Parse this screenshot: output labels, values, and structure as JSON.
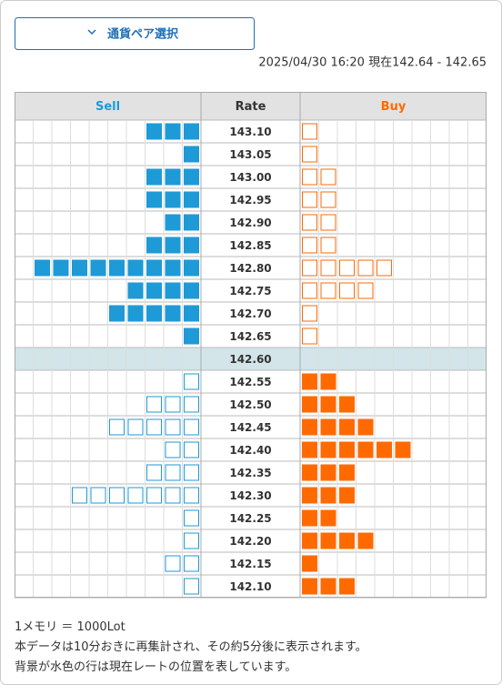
{
  "button": {
    "label": "通貨ペア選択"
  },
  "timestamp": "2025/04/30 16:20 現在142.64 - 142.65",
  "table": {
    "headers": [
      "Sell",
      "Rate",
      "Buy"
    ],
    "current_row": 10,
    "rows": [
      {
        "rate": "143.10",
        "sell": 3,
        "buy": 1
      },
      {
        "rate": "143.05",
        "sell": 1,
        "buy": 1
      },
      {
        "rate": "143.00",
        "sell": 3,
        "buy": 2
      },
      {
        "rate": "142.95",
        "sell": 3,
        "buy": 2
      },
      {
        "rate": "142.90",
        "sell": 2,
        "buy": 2
      },
      {
        "rate": "142.85",
        "sell": 3,
        "buy": 2
      },
      {
        "rate": "142.80",
        "sell": 9,
        "buy": 5
      },
      {
        "rate": "142.75",
        "sell": 4,
        "buy": 4
      },
      {
        "rate": "142.70",
        "sell": 5,
        "buy": 1
      },
      {
        "rate": "142.65",
        "sell": 1,
        "buy": 1
      },
      {
        "rate": "142.60",
        "sell": 0,
        "buy": 0
      },
      {
        "rate": "142.55",
        "sell": 1,
        "buy": 2
      },
      {
        "rate": "142.50",
        "sell": 3,
        "buy": 3
      },
      {
        "rate": "142.45",
        "sell": 5,
        "buy": 4
      },
      {
        "rate": "142.40",
        "sell": 2,
        "buy": 6
      },
      {
        "rate": "142.35",
        "sell": 3,
        "buy": 3
      },
      {
        "rate": "142.30",
        "sell": 7,
        "buy": 3
      },
      {
        "rate": "142.25",
        "sell": 1,
        "buy": 2
      },
      {
        "rate": "142.20",
        "sell": 1,
        "buy": 4
      },
      {
        "rate": "142.15",
        "sell": 2,
        "buy": 1
      },
      {
        "rate": "142.10",
        "sell": 1,
        "buy": 3
      }
    ]
  },
  "notes": [
    "1メモリ ＝ 1000Lot",
    "本データは10分おきに再集計され、その約5分後に表示されます。",
    "背景が水色の行は現在レートの位置を表しています。"
  ]
}
